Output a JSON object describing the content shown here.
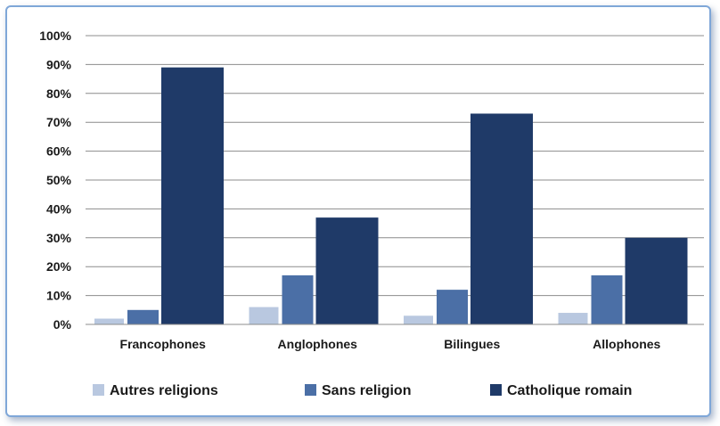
{
  "chart_data": {
    "type": "bar",
    "title": "",
    "xlabel": "",
    "ylabel": "",
    "ylim": [
      0,
      100
    ],
    "y_tick_values": [
      0,
      10,
      20,
      30,
      40,
      50,
      60,
      70,
      80,
      90,
      100
    ],
    "y_tick_labels": [
      "0%",
      "10%",
      "20%",
      "30%",
      "40%",
      "50%",
      "60%",
      "70%",
      "80%",
      "90%",
      "100%"
    ],
    "grid": "horizontal",
    "legend_position": "bottom",
    "categories": [
      "Francophones",
      "Anglophones",
      "Bilingues",
      "Allophones"
    ],
    "series": [
      {
        "name": "Autres religions",
        "color": "#b9c8e0",
        "values": [
          2,
          6,
          3,
          4
        ]
      },
      {
        "name": "Sans religion",
        "color": "#4b6fa6",
        "values": [
          5,
          17,
          12,
          17
        ]
      },
      {
        "name": "Catholique romain",
        "color": "#1f3a68",
        "values": [
          89,
          37,
          73,
          30
        ]
      }
    ]
  }
}
